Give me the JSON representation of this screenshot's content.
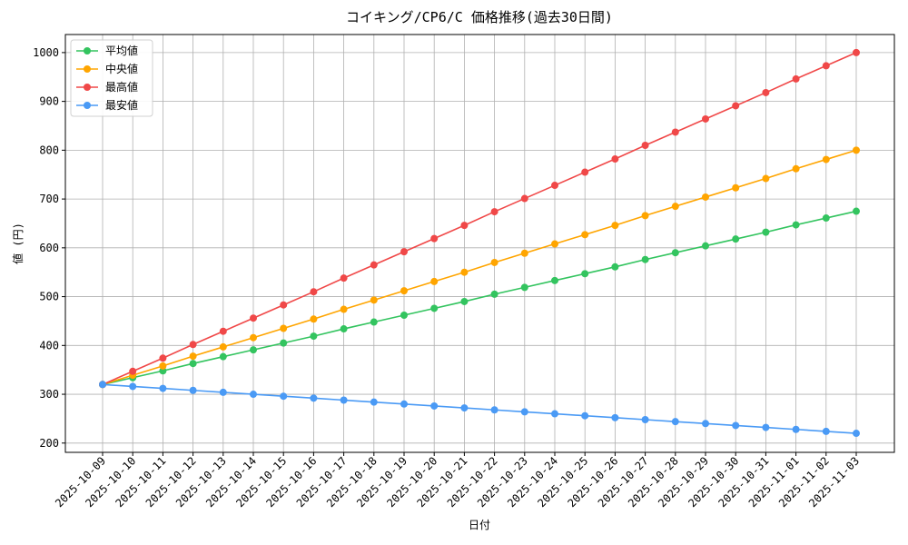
{
  "chart_data": {
    "type": "line",
    "title": "コイキング/CP6/C 価格推移(過去30日間)",
    "x_label": "日付",
    "y_label": "値 (円)",
    "categories": [
      "2025-10-09",
      "2025-10-10",
      "2025-10-11",
      "2025-10-12",
      "2025-10-13",
      "2025-10-14",
      "2025-10-15",
      "2025-10-16",
      "2025-10-17",
      "2025-10-18",
      "2025-10-19",
      "2025-10-20",
      "2025-10-21",
      "2025-10-22",
      "2025-10-23",
      "2025-10-24",
      "2025-10-25",
      "2025-10-26",
      "2025-10-27",
      "2025-10-28",
      "2025-10-29",
      "2025-10-30",
      "2025-10-31",
      "2025-11-01",
      "2025-11-02",
      "2025-11-03"
    ],
    "series": [
      {
        "name": "平均値",
        "color": "#33c45f",
        "values": [
          320,
          334,
          348,
          363,
          377,
          391,
          405,
          419,
          434,
          448,
          462,
          476,
          490,
          505,
          519,
          533,
          547,
          561,
          576,
          590,
          604,
          618,
          632,
          647,
          661,
          675
        ]
      },
      {
        "name": "中央値",
        "color": "#ffa500",
        "values": [
          320,
          339,
          358,
          378,
          397,
          416,
          435,
          454,
          474,
          493,
          512,
          531,
          550,
          570,
          589,
          608,
          627,
          646,
          666,
          685,
          704,
          723,
          742,
          762,
          781,
          800
        ]
      },
      {
        "name": "最高値",
        "color": "#f04848",
        "values": [
          320,
          347,
          374,
          402,
          429,
          456,
          483,
          510,
          538,
          565,
          592,
          619,
          646,
          674,
          701,
          728,
          755,
          782,
          810,
          837,
          864,
          891,
          918,
          946,
          973,
          1000
        ]
      },
      {
        "name": "最安値",
        "color": "#4a9af5",
        "values": [
          320,
          316,
          312,
          308,
          304,
          300,
          296,
          292,
          288,
          284,
          280,
          276,
          272,
          268,
          264,
          260,
          256,
          252,
          248,
          244,
          240,
          236,
          232,
          228,
          224,
          220
        ]
      }
    ],
    "ylim": [
      181,
      1037
    ],
    "yticks": [
      200,
      300,
      400,
      500,
      600,
      700,
      800,
      900,
      1000
    ],
    "grid": true,
    "legend": "upper-left"
  }
}
